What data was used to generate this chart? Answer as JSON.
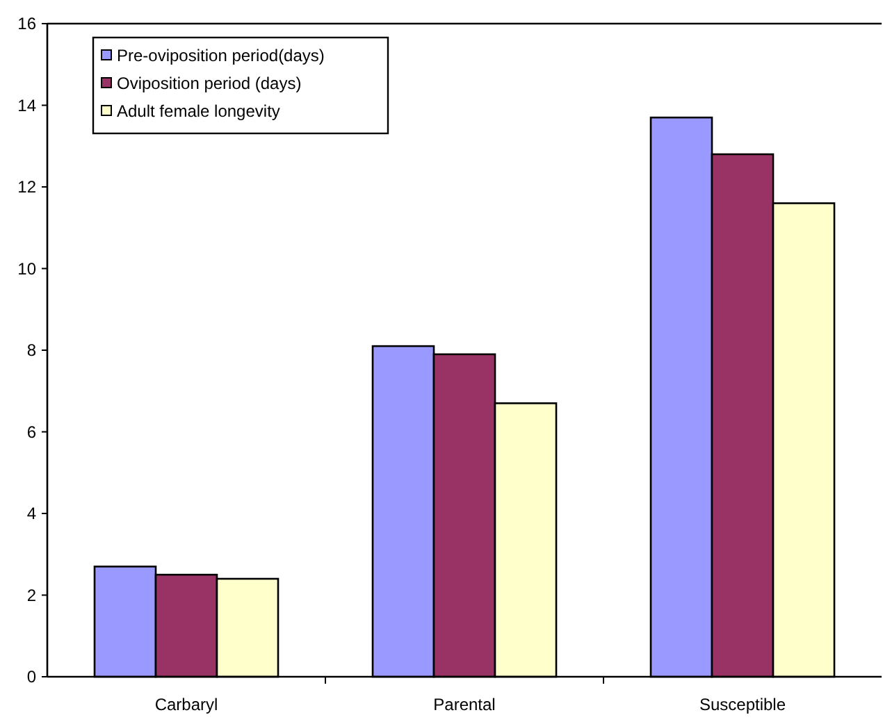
{
  "chart_data": {
    "type": "bar",
    "categories": [
      "Carbaryl",
      "Parental",
      "Susceptible"
    ],
    "series": [
      {
        "name": "Pre-oviposition period(days)",
        "color": "#9999ff",
        "values": [
          2.7,
          8.1,
          13.7
        ]
      },
      {
        "name": "Oviposition period (days)",
        "color": "#993366",
        "values": [
          2.5,
          7.9,
          12.8
        ]
      },
      {
        "name": "Adult female longevity",
        "color": "#ffffcc",
        "values": [
          2.4,
          6.7,
          11.6
        ]
      }
    ],
    "ylim": [
      0,
      16
    ],
    "yticks": [
      0,
      2,
      4,
      6,
      8,
      10,
      12,
      14,
      16
    ],
    "grid": false,
    "legend": "top left"
  }
}
